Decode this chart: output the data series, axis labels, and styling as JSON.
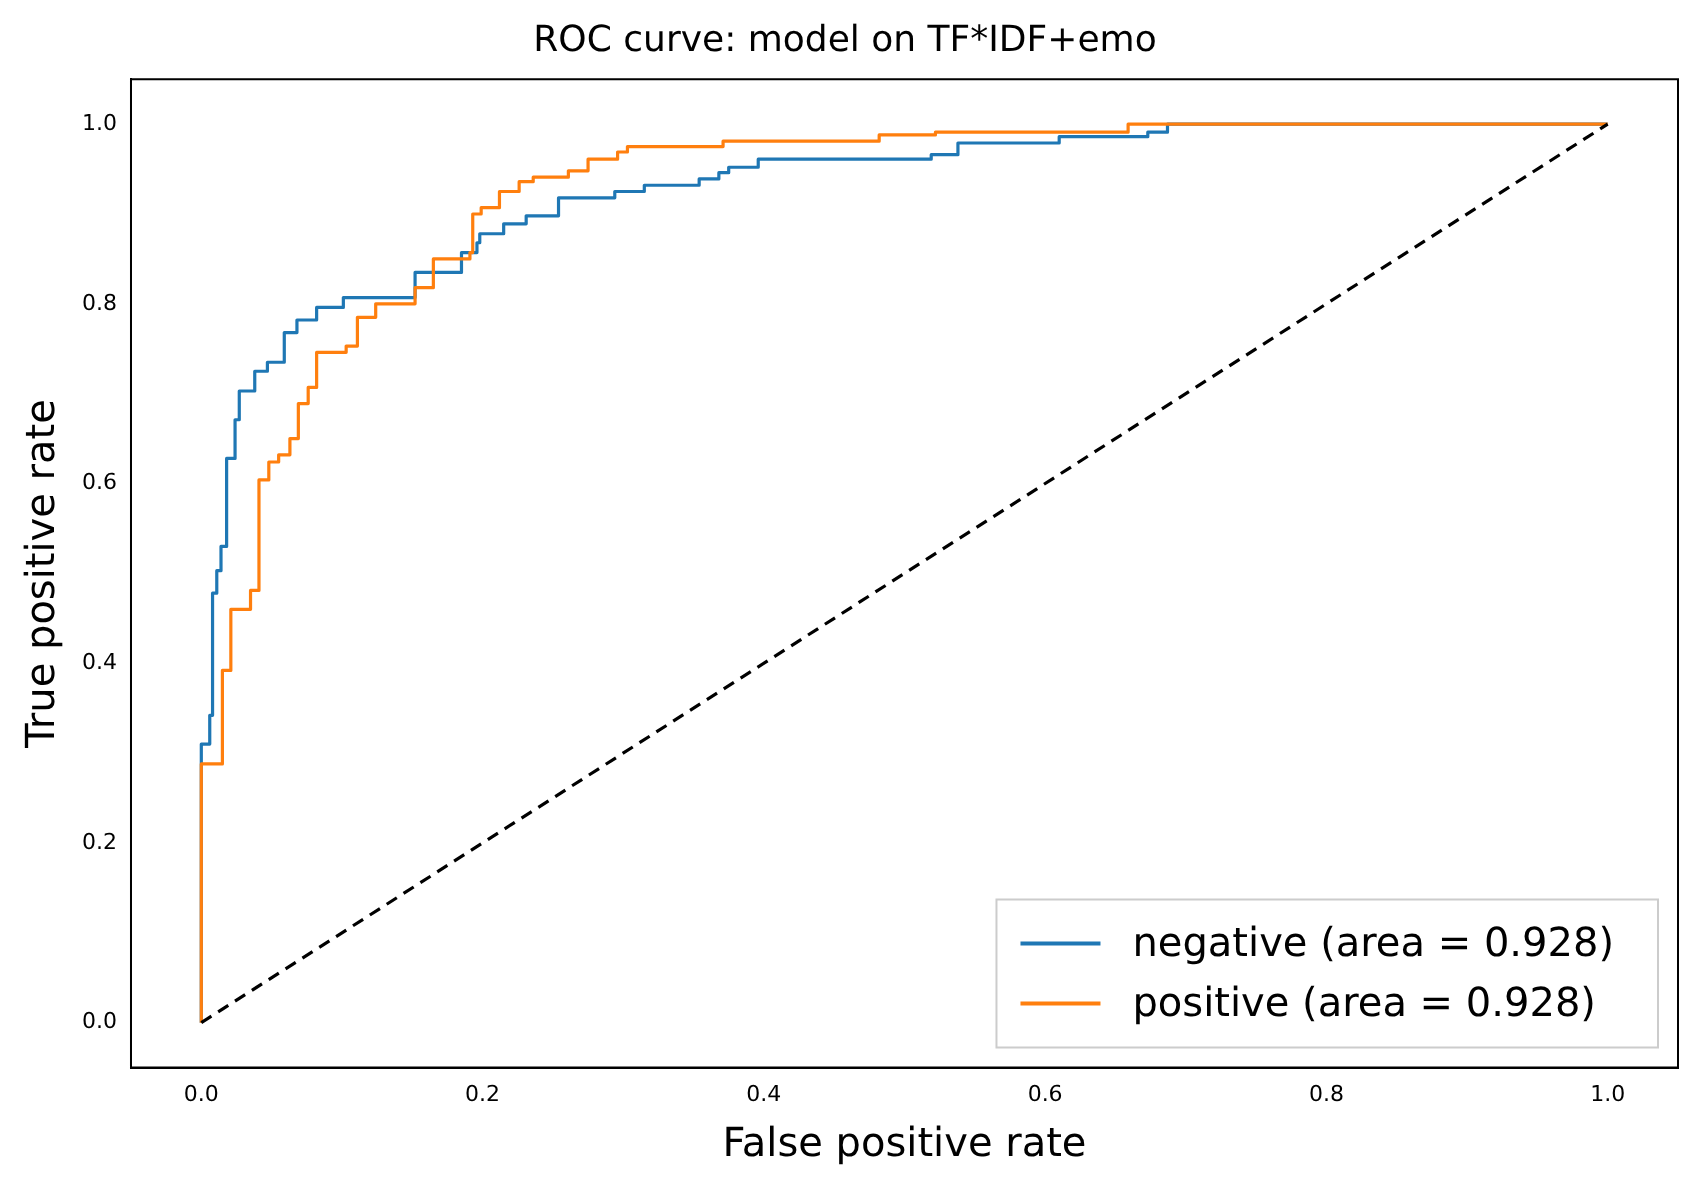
{
  "chart_data": {
    "type": "step",
    "title": "ROC curve: model on TF*IDF+emo",
    "xlabel": "False positive rate",
    "ylabel": "True positive rate",
    "xlim": [
      -0.05,
      1.05
    ],
    "ylim": [
      -0.05,
      1.05
    ],
    "xticks": [
      {
        "value": 0,
        "label": "0.0"
      },
      {
        "value": 0.2,
        "label": "0.2"
      },
      {
        "value": 0.4,
        "label": "0.4"
      },
      {
        "value": 0.6,
        "label": "0.6"
      },
      {
        "value": 0.8,
        "label": "0.8"
      },
      {
        "value": 1,
        "label": "1.0"
      }
    ],
    "yticks": [
      {
        "value": 0,
        "label": "0.0"
      },
      {
        "value": 0.2,
        "label": "0.2"
      },
      {
        "value": 0.4,
        "label": "0.4"
      },
      {
        "value": 0.6,
        "label": "0.6"
      },
      {
        "value": 0.8,
        "label": "0.8"
      },
      {
        "value": 1,
        "label": "1.0"
      }
    ],
    "grid": false,
    "legend": "bottom right",
    "marker": "none",
    "series": [
      {
        "name": "negative (area = 0.928)",
        "color": "#1f77b4",
        "x": [
          0,
          0,
          0.006,
          0.008,
          0.011,
          0.014,
          0.018,
          0.024,
          0.027,
          0.038,
          0.047,
          0.059,
          0.068,
          0.082,
          0.101,
          0.152,
          0.185,
          0.196,
          0.198,
          0.215,
          0.231,
          0.254,
          0.294,
          0.315,
          0.354,
          0.368,
          0.375,
          0.396,
          0.519,
          0.538,
          0.61,
          0.673,
          0.687,
          1
        ],
        "values": [
          0,
          0.31,
          0.342,
          0.478,
          0.503,
          0.53,
          0.628,
          0.671,
          0.703,
          0.725,
          0.735,
          0.768,
          0.782,
          0.796,
          0.807,
          0.835,
          0.857,
          0.868,
          0.878,
          0.889,
          0.898,
          0.918,
          0.925,
          0.932,
          0.939,
          0.946,
          0.952,
          0.961,
          0.966,
          0.979,
          0.986,
          0.991,
          1,
          1
        ]
      },
      {
        "name": "positive (area = 0.928)",
        "color": "#ff7f0e",
        "x": [
          0,
          0,
          0.015,
          0.021,
          0.035,
          0.041,
          0.048,
          0.055,
          0.063,
          0.069,
          0.076,
          0.082,
          0.103,
          0.111,
          0.124,
          0.152,
          0.165,
          0.191,
          0.193,
          0.199,
          0.212,
          0.226,
          0.236,
          0.261,
          0.275,
          0.296,
          0.303,
          0.371,
          0.482,
          0.522,
          0.659,
          1
        ],
        "values": [
          0,
          0.288,
          0.392,
          0.46,
          0.481,
          0.604,
          0.624,
          0.632,
          0.65,
          0.689,
          0.707,
          0.746,
          0.753,
          0.785,
          0.8,
          0.818,
          0.85,
          0.857,
          0.9,
          0.907,
          0.925,
          0.936,
          0.941,
          0.948,
          0.961,
          0.969,
          0.975,
          0.981,
          0.988,
          0.991,
          1,
          1
        ]
      },
      {
        "type": "line",
        "color": "#000000",
        "line_style": "dashed",
        "x": [
          0,
          1
        ],
        "values": [
          0,
          1
        ]
      }
    ]
  }
}
